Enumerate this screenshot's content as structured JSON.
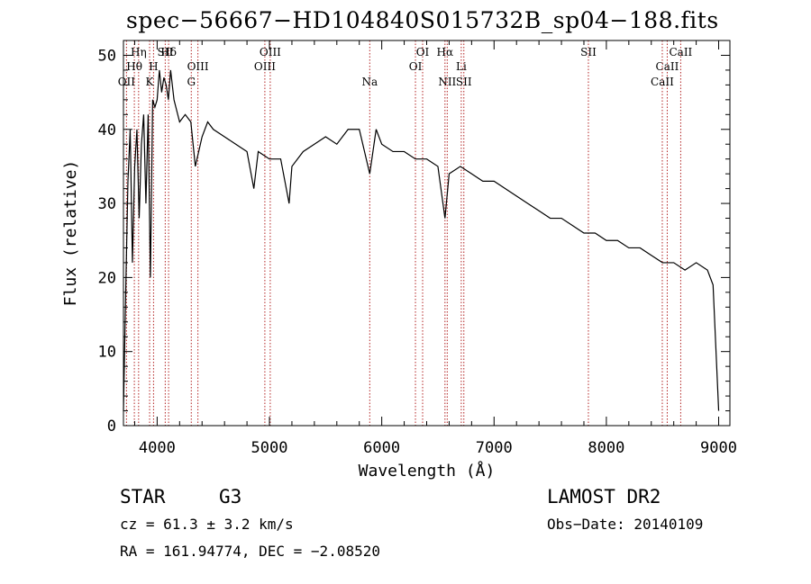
{
  "chart_data": {
    "type": "line",
    "title": "spec−56667−HD104840S015732B_sp04−188.fits",
    "xlabel": "Wavelength (Å)",
    "ylabel": "Flux (relative)",
    "xlim": [
      3700,
      9100
    ],
    "ylim": [
      0,
      52
    ],
    "xticks": [
      4000,
      5000,
      6000,
      7000,
      8000,
      9000
    ],
    "yticks": [
      0,
      10,
      20,
      30,
      40,
      50
    ],
    "grid": false,
    "series": [
      {
        "x": [
          3700,
          3720,
          3740,
          3760,
          3780,
          3800,
          3820,
          3840,
          3860,
          3880,
          3900,
          3920,
          3940,
          3960,
          3980,
          4000,
          4020,
          4040,
          4060,
          4080,
          4100,
          4120,
          4150,
          4200,
          4250,
          4300,
          4340,
          4400,
          4450,
          4500,
          4600,
          4700,
          4800,
          4861,
          4900,
          5000,
          5100,
          5175,
          5200,
          5300,
          5400,
          5500,
          5600,
          5700,
          5800,
          5893,
          5950,
          6000,
          6100,
          6200,
          6300,
          6400,
          6500,
          6563,
          6600,
          6700,
          6800,
          6900,
          7000,
          7100,
          7200,
          7300,
          7400,
          7500,
          7600,
          7700,
          7800,
          7900,
          8000,
          8100,
          8200,
          8300,
          8400,
          8500,
          8600,
          8700,
          8800,
          8900,
          8950,
          9000
        ],
        "y": [
          2,
          18,
          33,
          40,
          22,
          35,
          40,
          28,
          38,
          42,
          30,
          42,
          20,
          44,
          43,
          44,
          48,
          45,
          47,
          46,
          44,
          48,
          44,
          41,
          42,
          41,
          35,
          39,
          41,
          40,
          39,
          38,
          37,
          32,
          37,
          36,
          36,
          30,
          35,
          37,
          38,
          39,
          38,
          40,
          40,
          34,
          40,
          38,
          37,
          37,
          36,
          36,
          35,
          28,
          34,
          35,
          34,
          33,
          33,
          32,
          31,
          30,
          29,
          28,
          28,
          27,
          26,
          26,
          25,
          25,
          24,
          24,
          23,
          22,
          22,
          21,
          22,
          21,
          19,
          2
        ]
      }
    ],
    "line_markers": [
      {
        "label": "Hη",
        "x": 3835
      },
      {
        "label": "Hθ",
        "x": 3797
      },
      {
        "label": "OII",
        "x": 3727
      },
      {
        "label": "SII",
        "x": 4072
      },
      {
        "label": "H",
        "x": 3968
      },
      {
        "label": "K",
        "x": 3933
      },
      {
        "label": "Hδ",
        "x": 4102
      },
      {
        "label": "OIII",
        "x": 4363
      },
      {
        "label": "G",
        "x": 4304
      },
      {
        "label": "OIII",
        "x": 5007
      },
      {
        "label": "OIII",
        "x": 4959
      },
      {
        "label": "Na",
        "x": 5893
      },
      {
        "label": "OI",
        "x": 6364
      },
      {
        "label": "OI",
        "x": 6300
      },
      {
        "label": "NII",
        "x": 6583
      },
      {
        "label": "Hα",
        "x": 6563
      },
      {
        "label": "Li",
        "x": 6708
      },
      {
        "label": "SII",
        "x": 6731
      },
      {
        "label": "SII",
        "x": 7840
      },
      {
        "label": "CaII",
        "x": 8542
      },
      {
        "label": "CaII",
        "x": 8498
      },
      {
        "label": "CaII",
        "x": 8662
      }
    ]
  },
  "info": {
    "object_class": "STAR",
    "subclass": "G3",
    "survey": "LAMOST DR2",
    "cz": "cz = 61.3 ± 3.2 km/s",
    "obs_date": "Obs−Date: 20140109",
    "radec": "RA = 161.94774, DEC =  −2.08520"
  },
  "colors": {
    "spectrum": "#000000",
    "marker": "#b22222",
    "axis": "#000000"
  }
}
